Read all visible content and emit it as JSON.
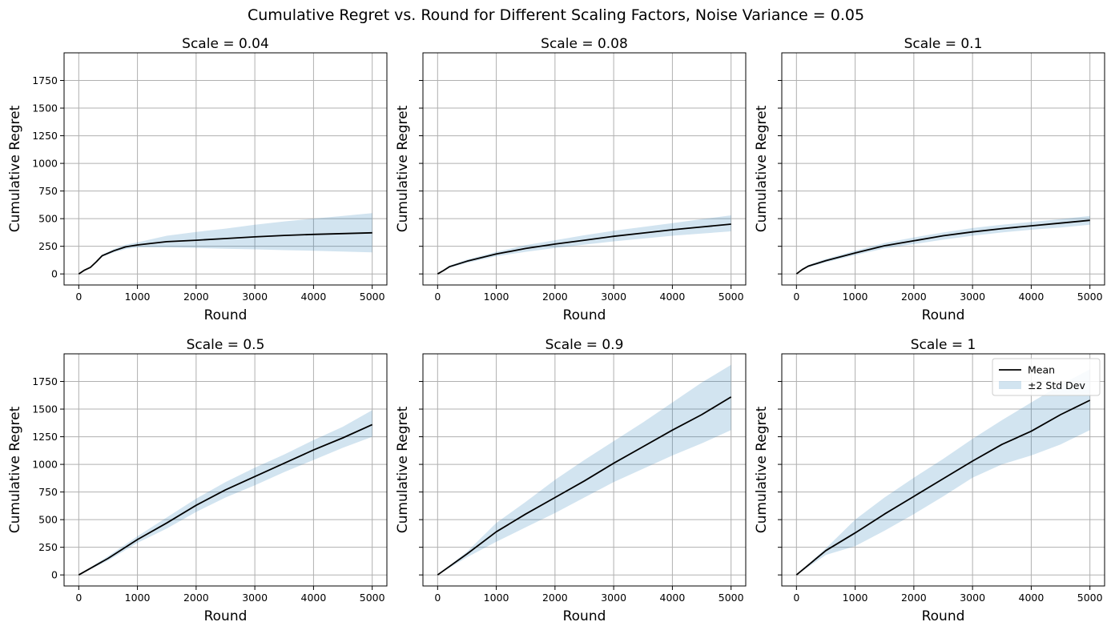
{
  "figure": {
    "suptitle": "Cumulative Regret vs. Round for Different Scaling Factors, Noise Variance = 0.05"
  },
  "colors": {
    "mean_line": "#000000",
    "band_fill": "#1f77b4",
    "grid": "#b0b0b0",
    "axes": "#000000"
  },
  "legend": {
    "mean_label": "Mean",
    "band_label": "±2 Std Dev",
    "location": "upper-right of last subplot"
  },
  "chart_data": [
    {
      "type": "line",
      "title": "Scale = 0.04",
      "xlabel": "Round",
      "ylabel": "Cumulative Regret",
      "xlim": [
        -250,
        5250
      ],
      "ylim": [
        -100,
        2000
      ],
      "xticks": [
        "0",
        "1000",
        "2000",
        "3000",
        "4000",
        "5000"
      ],
      "yticks": [
        "0",
        "250",
        "500",
        "750",
        "1000",
        "1250",
        "1500",
        "1750"
      ],
      "grid": true,
      "x": [
        0,
        100,
        200,
        300,
        400,
        600,
        800,
        1000,
        1500,
        2000,
        2500,
        3000,
        3500,
        4000,
        4500,
        5000
      ],
      "mean": [
        0,
        35,
        60,
        110,
        165,
        210,
        245,
        262,
        292,
        305,
        320,
        335,
        348,
        358,
        365,
        372
      ],
      "lower": [
        0,
        30,
        55,
        100,
        155,
        195,
        225,
        240,
        240,
        235,
        228,
        222,
        215,
        210,
        203,
        195
      ],
      "upper": [
        0,
        40,
        65,
        120,
        175,
        225,
        265,
        285,
        345,
        380,
        410,
        445,
        475,
        500,
        525,
        550
      ]
    },
    {
      "type": "line",
      "title": "Scale = 0.08",
      "xlabel": "Round",
      "ylabel": "Cumulative Regret",
      "xlim": [
        -250,
        5250
      ],
      "ylim": [
        -100,
        2000
      ],
      "xticks": [
        "0",
        "1000",
        "2000",
        "3000",
        "4000",
        "5000"
      ],
      "yticks": [
        "0",
        "250",
        "500",
        "750",
        "1000",
        "1250",
        "1500",
        "1750"
      ],
      "grid": true,
      "x": [
        0,
        100,
        200,
        500,
        1000,
        1500,
        2000,
        2500,
        3000,
        3500,
        4000,
        4500,
        5000
      ],
      "mean": [
        0,
        30,
        65,
        115,
        180,
        230,
        270,
        305,
        340,
        370,
        400,
        425,
        450
      ],
      "lower": [
        0,
        25,
        55,
        100,
        160,
        200,
        235,
        265,
        295,
        320,
        345,
        365,
        385
      ],
      "upper": [
        0,
        35,
        75,
        130,
        200,
        260,
        305,
        350,
        390,
        425,
        460,
        495,
        530
      ]
    },
    {
      "type": "line",
      "title": "Scale = 0.1",
      "xlabel": "Round",
      "ylabel": "Cumulative Regret",
      "xlim": [
        -250,
        5250
      ],
      "ylim": [
        -100,
        2000
      ],
      "xticks": [
        "0",
        "1000",
        "2000",
        "3000",
        "4000",
        "5000"
      ],
      "yticks": [
        "0",
        "250",
        "500",
        "750",
        "1000",
        "1250",
        "1500",
        "1750"
      ],
      "grid": true,
      "x": [
        0,
        100,
        200,
        500,
        1000,
        1500,
        2000,
        2500,
        3000,
        3500,
        4000,
        4500,
        5000
      ],
      "mean": [
        0,
        40,
        70,
        120,
        190,
        255,
        300,
        345,
        380,
        410,
        435,
        460,
        485
      ],
      "lower": [
        0,
        35,
        60,
        105,
        170,
        230,
        270,
        310,
        345,
        375,
        400,
        420,
        445
      ],
      "upper": [
        0,
        45,
        80,
        135,
        210,
        280,
        330,
        375,
        415,
        445,
        470,
        495,
        525
      ]
    },
    {
      "type": "line",
      "title": "Scale = 0.5",
      "xlabel": "Round",
      "ylabel": "Cumulative Regret",
      "xlim": [
        -250,
        5250
      ],
      "ylim": [
        -100,
        2000
      ],
      "xticks": [
        "0",
        "1000",
        "2000",
        "3000",
        "4000",
        "5000"
      ],
      "yticks": [
        "0",
        "250",
        "500",
        "750",
        "1000",
        "1250",
        "1500",
        "1750"
      ],
      "grid": true,
      "x": [
        0,
        500,
        1000,
        1500,
        2000,
        2500,
        3000,
        3500,
        4000,
        4500,
        5000
      ],
      "mean": [
        0,
        150,
        320,
        470,
        630,
        770,
        890,
        1010,
        1130,
        1240,
        1360
      ],
      "lower": [
        0,
        130,
        290,
        420,
        570,
        700,
        810,
        930,
        1040,
        1150,
        1250
      ],
      "upper": [
        0,
        170,
        350,
        520,
        690,
        840,
        970,
        1090,
        1220,
        1340,
        1490
      ]
    },
    {
      "type": "line",
      "title": "Scale = 0.9",
      "xlabel": "Round",
      "ylabel": "Cumulative Regret",
      "xlim": [
        -250,
        5250
      ],
      "ylim": [
        -100,
        2000
      ],
      "xticks": [
        "0",
        "1000",
        "2000",
        "3000",
        "4000",
        "5000"
      ],
      "yticks": [
        "0",
        "250",
        "500",
        "750",
        "1000",
        "1250",
        "1500",
        "1750"
      ],
      "grid": true,
      "x": [
        0,
        500,
        1000,
        1500,
        2000,
        2500,
        3000,
        3500,
        4000,
        4500,
        5000
      ],
      "mean": [
        0,
        190,
        390,
        550,
        700,
        850,
        1010,
        1160,
        1310,
        1450,
        1610
      ],
      "lower": [
        0,
        160,
        300,
        430,
        560,
        700,
        840,
        960,
        1080,
        1190,
        1310
      ],
      "upper": [
        0,
        210,
        470,
        660,
        860,
        1040,
        1210,
        1380,
        1560,
        1740,
        1900
      ]
    },
    {
      "type": "line",
      "title": "Scale = 1",
      "xlabel": "Round",
      "ylabel": "Cumulative Regret",
      "xlim": [
        -250,
        5250
      ],
      "ylim": [
        -100,
        2000
      ],
      "xticks": [
        "0",
        "1000",
        "2000",
        "3000",
        "4000",
        "5000"
      ],
      "yticks": [
        "0",
        "250",
        "500",
        "750",
        "1000",
        "1250",
        "1500",
        "1750"
      ],
      "grid": true,
      "legend": [
        "Mean",
        "±2 Std Dev"
      ],
      "x": [
        0,
        500,
        1000,
        1500,
        2000,
        2500,
        3000,
        3500,
        4000,
        4500,
        5000
      ],
      "mean": [
        0,
        220,
        380,
        550,
        710,
        870,
        1030,
        1180,
        1300,
        1450,
        1580
      ],
      "lower": [
        0,
        180,
        260,
        400,
        550,
        710,
        880,
        1000,
        1080,
        1180,
        1310
      ],
      "upper": [
        0,
        240,
        500,
        700,
        880,
        1050,
        1230,
        1400,
        1560,
        1720,
        1860
      ]
    }
  ]
}
